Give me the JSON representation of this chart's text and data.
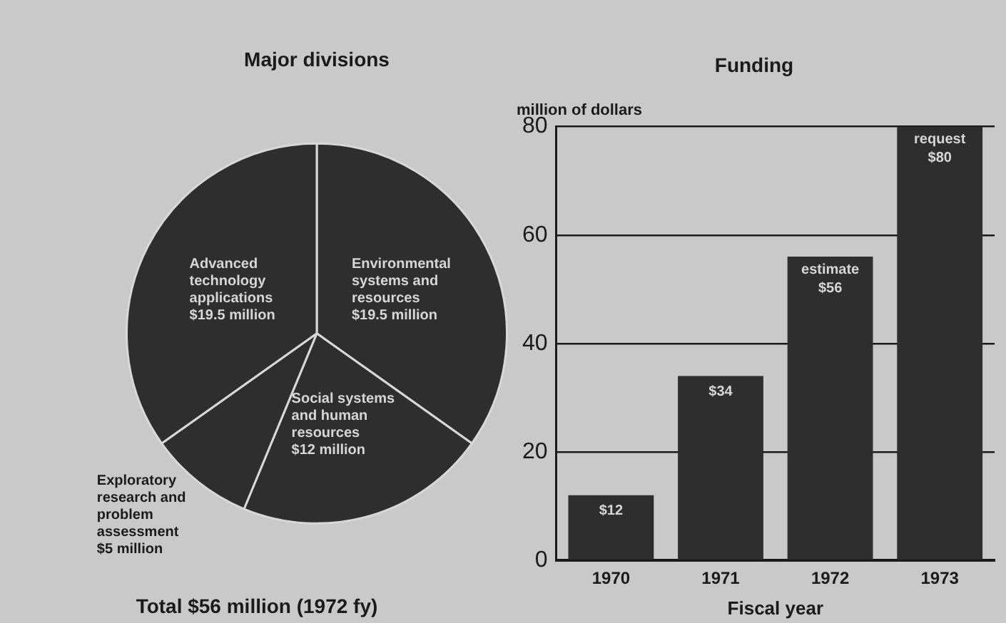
{
  "chart_data": [
    {
      "type": "pie",
      "title": "Major divisions",
      "categories": [
        "Environmental systems and resources",
        "Social systems and human resources",
        "Exploratory research and problem assessment",
        "Advanced technology applications"
      ],
      "values": [
        19.5,
        12,
        5,
        19.5
      ],
      "colors": [
        "#2e2e2e",
        "#2e2e2e",
        "#2e2e2e",
        "#2e2e2e"
      ],
      "value_labels": [
        "$19.5 million",
        "$12 million",
        "$5 million",
        "$19.5 million"
      ],
      "annotations": [
        "Total $56 million (1972 fy)"
      ],
      "legend": false
    },
    {
      "type": "bar",
      "title": "Funding",
      "categories": [
        "1970",
        "1971",
        "1972",
        "1973"
      ],
      "values": [
        12,
        34,
        56,
        80
      ],
      "color": "#2e2e2e",
      "value_labels": [
        "$12",
        "$34",
        "$56",
        "$80"
      ],
      "ylim": [
        0,
        80
      ],
      "yticks": [
        0,
        20,
        40,
        60,
        80
      ],
      "grid": "y",
      "ylabel": "million of dollars",
      "xlabel": "Fiscal year",
      "legend": false,
      "annotations": [
        {
          "text": "estimate",
          "x": "1972",
          "y": 56
        },
        {
          "text": "request",
          "x": "1973",
          "y": 80
        }
      ]
    }
  ]
}
